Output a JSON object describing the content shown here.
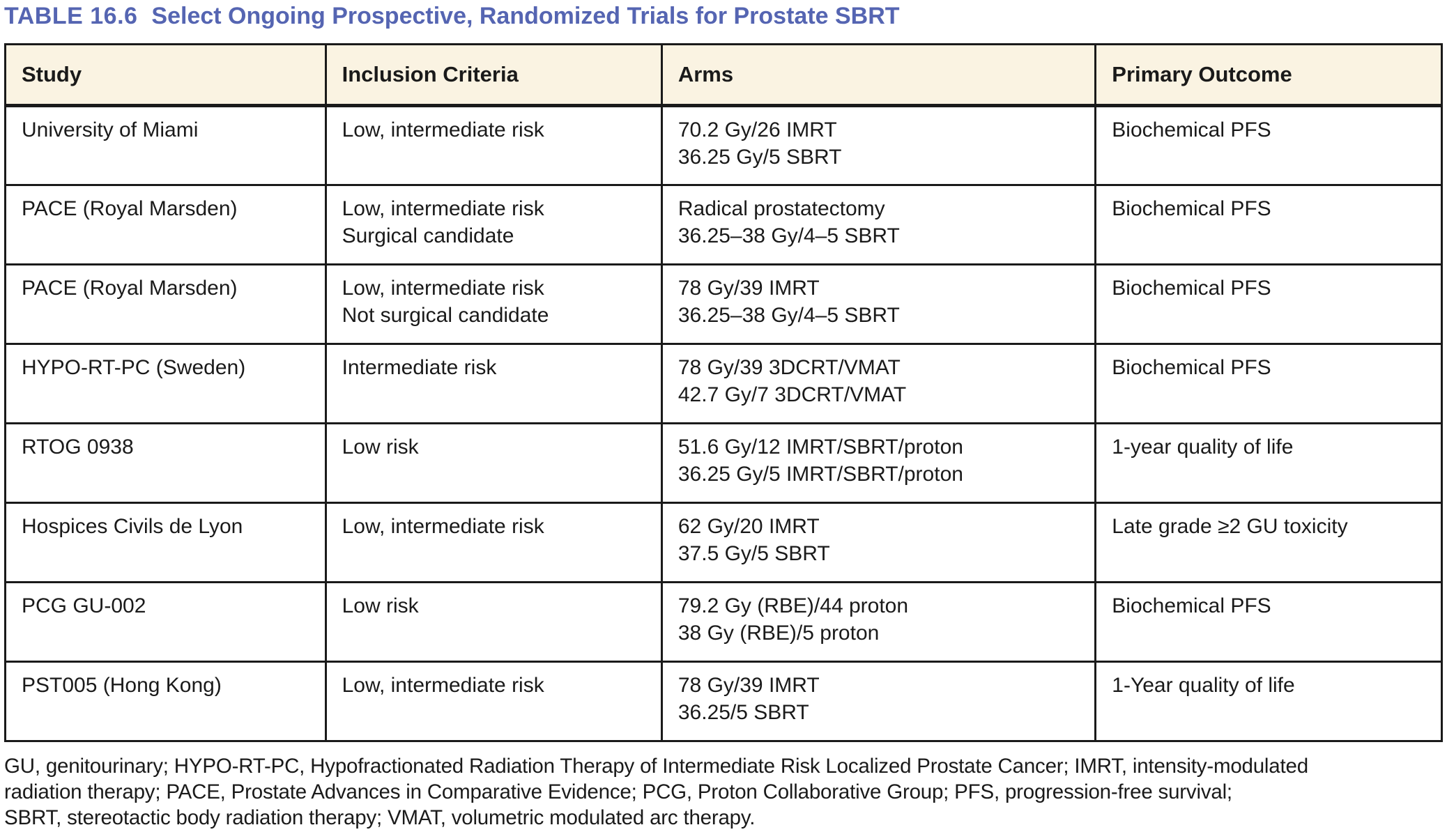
{
  "title": {
    "label": "TABLE 16.6",
    "text": "Select Ongoing Prospective, Randomized Trials for Prostate SBRT"
  },
  "table": {
    "columns": [
      "Study",
      "Inclusion Criteria",
      "Arms",
      "Primary Outcome"
    ],
    "rows": [
      {
        "study": "University of Miami",
        "inclusion": [
          "Low, intermediate risk"
        ],
        "arms": [
          "70.2 Gy/26 IMRT",
          "36.25 Gy/5 SBRT"
        ],
        "outcome": "Biochemical PFS"
      },
      {
        "study": "PACE (Royal Marsden)",
        "inclusion": [
          "Low, intermediate risk",
          "Surgical candidate"
        ],
        "arms": [
          "Radical prostatectomy",
          "36.25–38 Gy/4–5 SBRT"
        ],
        "outcome": "Biochemical PFS"
      },
      {
        "study": "PACE (Royal Marsden)",
        "inclusion": [
          "Low, intermediate risk",
          "Not surgical candidate"
        ],
        "arms": [
          "78 Gy/39 IMRT",
          "36.25–38 Gy/4–5 SBRT"
        ],
        "outcome": "Biochemical PFS"
      },
      {
        "study": "HYPO-RT-PC (Sweden)",
        "inclusion": [
          "Intermediate risk"
        ],
        "arms": [
          "78 Gy/39 3DCRT/VMAT",
          "42.7 Gy/7 3DCRT/VMAT"
        ],
        "outcome": "Biochemical PFS"
      },
      {
        "study": "RTOG 0938",
        "inclusion": [
          "Low risk"
        ],
        "arms": [
          "51.6 Gy/12 IMRT/SBRT/proton",
          "36.25 Gy/5 IMRT/SBRT/proton"
        ],
        "outcome": "1-year quality of life"
      },
      {
        "study": "Hospices Civils de Lyon",
        "inclusion": [
          "Low, intermediate risk"
        ],
        "arms": [
          "62 Gy/20 IMRT",
          "37.5 Gy/5 SBRT"
        ],
        "outcome": "Late grade ≥2 GU toxicity"
      },
      {
        "study": "PCG GU-002",
        "inclusion": [
          "Low risk"
        ],
        "arms": [
          "79.2 Gy (RBE)/44 proton",
          "38 Gy (RBE)/5 proton"
        ],
        "outcome": "Biochemical PFS"
      },
      {
        "study": "PST005 (Hong Kong)",
        "inclusion": [
          "Low, intermediate risk"
        ],
        "arms": [
          "78 Gy/39 IMRT",
          "36.25/5 SBRT"
        ],
        "outcome": "1-Year quality of life"
      }
    ]
  },
  "footnote": {
    "lines": [
      "GU, genitourinary; HYPO-RT-PC, Hypofractionated Radiation Therapy of Intermediate Risk Localized Prostate Cancer; IMRT, intensity-modulated",
      "radiation therapy; PACE, Prostate Advances in Comparative Evidence; PCG, Proton Collaborative Group; PFS, progression-free survival;",
      "SBRT, stereotactic body radiation therapy; VMAT, volumetric modulated arc therapy."
    ]
  },
  "colors": {
    "title-blue": "#5565b2",
    "header-bg": "#faf3e2",
    "ink": "#1a1a1a"
  }
}
